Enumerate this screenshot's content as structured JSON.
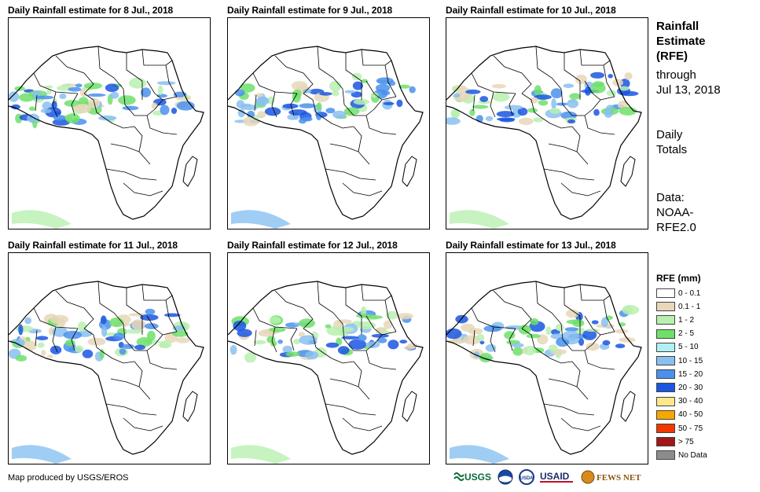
{
  "panels": [
    {
      "title": "Daily Rainfall estimate for 8 Jul., 2018"
    },
    {
      "title": "Daily Rainfall estimate for 9 Jul., 2018"
    },
    {
      "title": "Daily Rainfall estimate for 10 Jul., 2018"
    },
    {
      "title": "Daily Rainfall estimate for 11 Jul., 2018"
    },
    {
      "title": "Daily Rainfall estimate for 12 Jul., 2018"
    },
    {
      "title": "Daily Rainfall estimate for 13 Jul., 2018"
    }
  ],
  "sidebar": {
    "title_line1": "Rainfall",
    "title_line2": "Estimate",
    "title_line3": "(RFE)",
    "through_label": "through",
    "through_date": "Jul 13, 2018",
    "totals_line1": "Daily",
    "totals_line2": "Totals",
    "data_line1": "Data:",
    "data_line2": "NOAA-",
    "data_line3": "RFE2.0"
  },
  "legend": {
    "title": "RFE (mm)",
    "items": [
      {
        "label": "0 - 0.1",
        "color": "#ffffff"
      },
      {
        "label": "0.1 - 1",
        "color": "#e8d7b8"
      },
      {
        "label": "1 - 2",
        "color": "#b8f0b0"
      },
      {
        "label": "2 - 5",
        "color": "#6ee06a"
      },
      {
        "label": "5 - 10",
        "color": "#b0f0f4"
      },
      {
        "label": "10 - 15",
        "color": "#88c0f0"
      },
      {
        "label": "15 - 20",
        "color": "#4a90ec"
      },
      {
        "label": "20 - 30",
        "color": "#1a56e0"
      },
      {
        "label": "30 - 40",
        "color": "#ffe88a"
      },
      {
        "label": "40 - 50",
        "color": "#f5a800"
      },
      {
        "label": "50 - 75",
        "color": "#f03800"
      },
      {
        "label": "> 75",
        "color": "#a01818"
      },
      {
        "label": "No Data",
        "color": "#8c8c8c"
      }
    ]
  },
  "footer": {
    "credit": "Map produced by USGS/EROS",
    "logos": [
      "USGS",
      "NOAA",
      "USDA",
      "USAID",
      "FEWS NET"
    ]
  }
}
